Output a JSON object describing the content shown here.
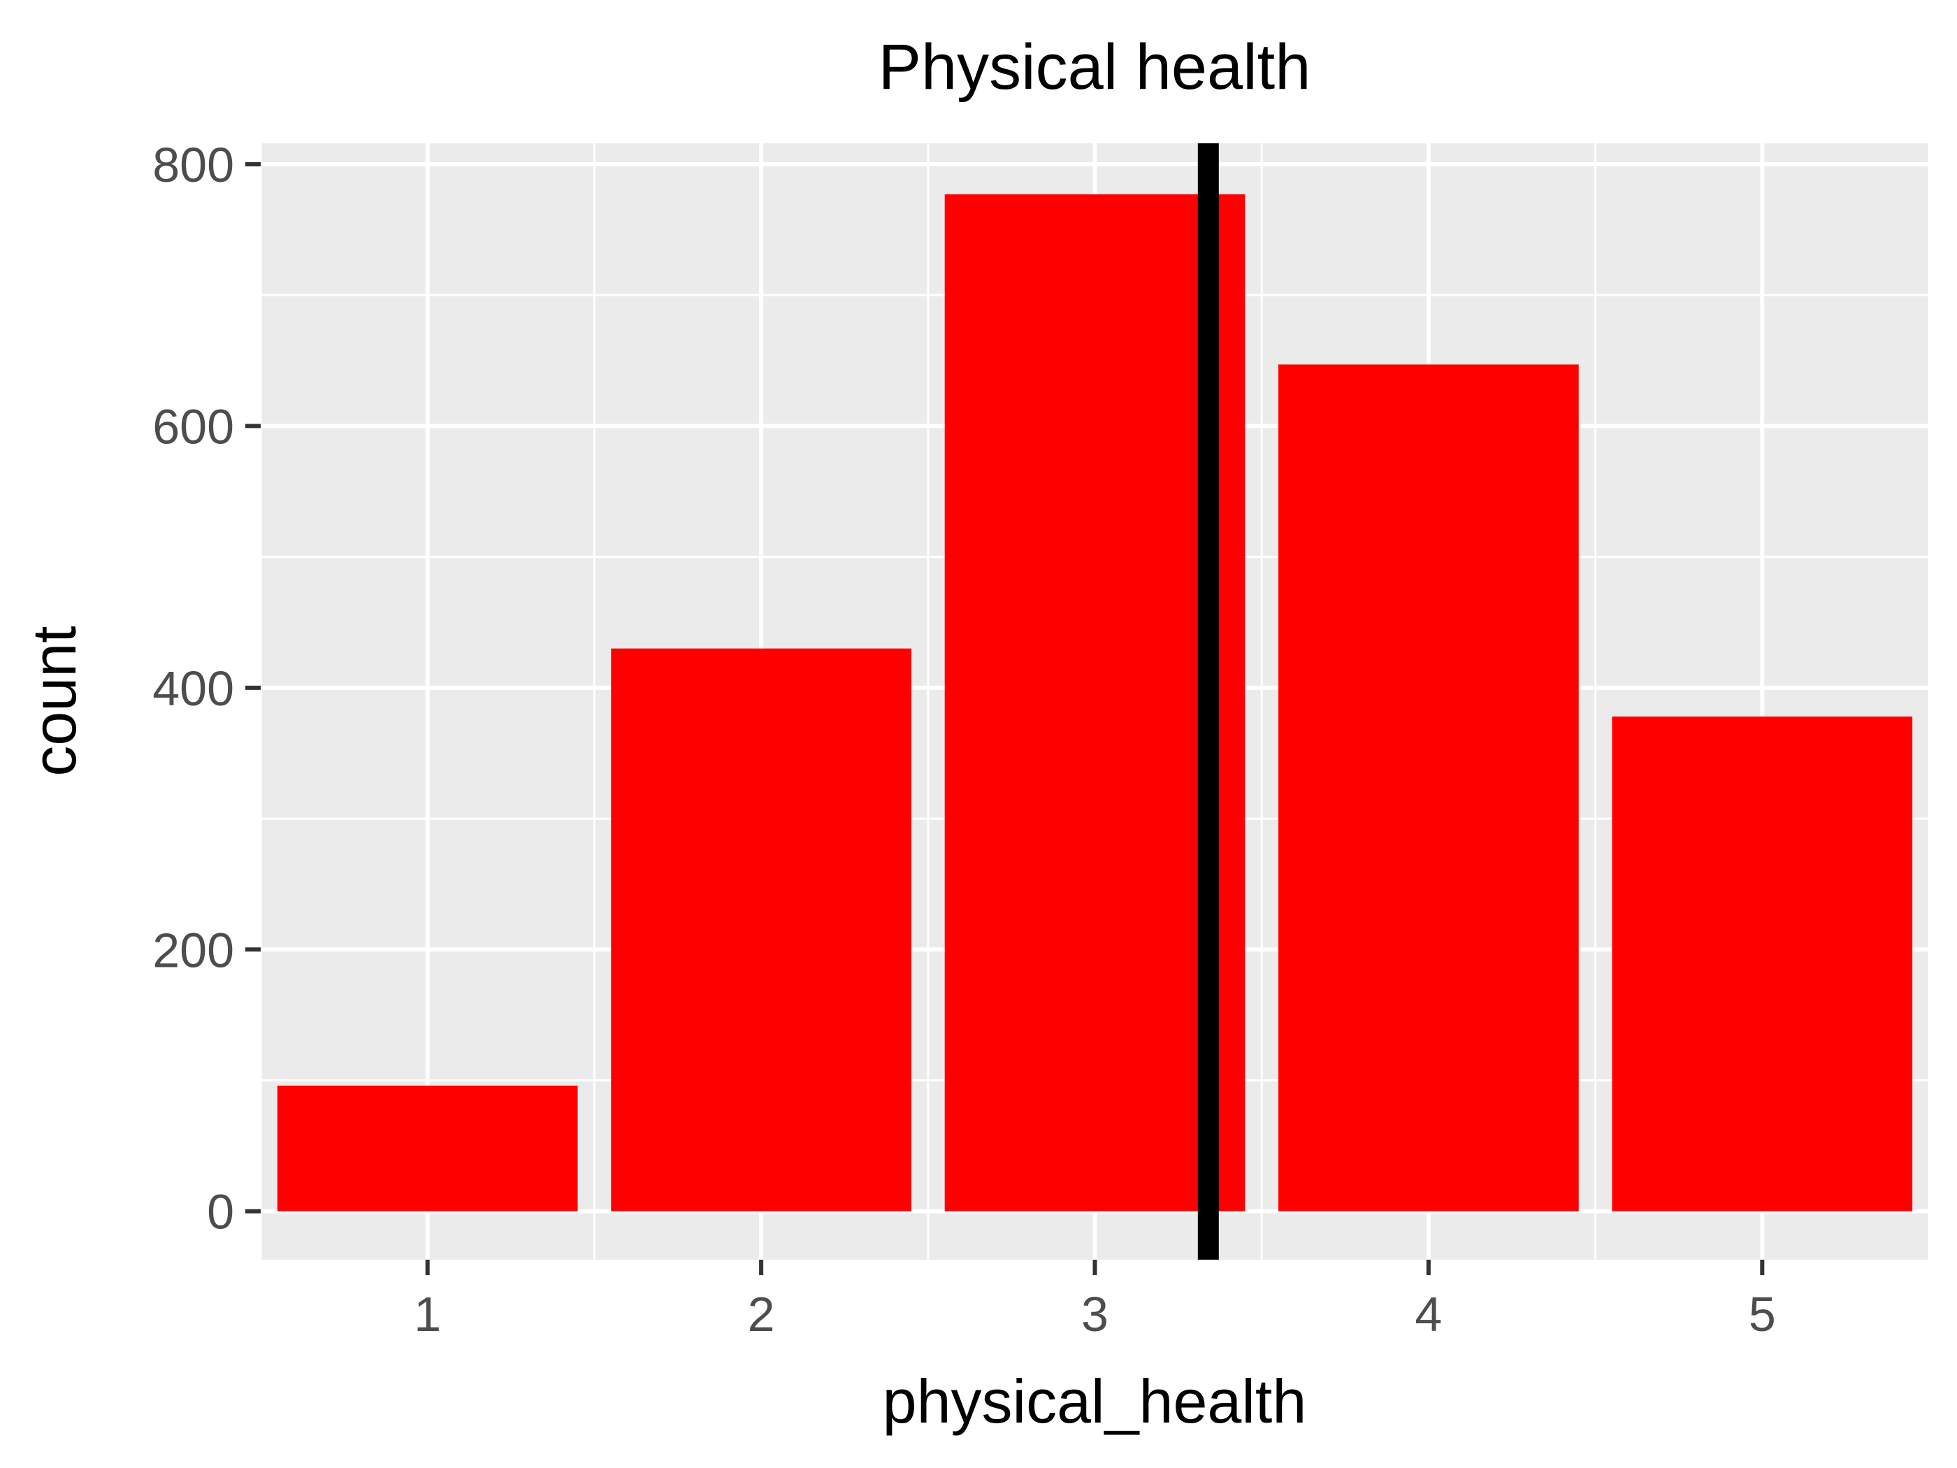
{
  "chart_data": {
    "type": "bar",
    "title": "Physical health",
    "xlabel": "physical_health",
    "ylabel": "count",
    "categories": [
      "1",
      "2",
      "3",
      "4",
      "5"
    ],
    "values": [
      96,
      430,
      777,
      647,
      378
    ],
    "ylim": [
      -37,
      816
    ],
    "xlim": [
      0.5,
      5.5
    ],
    "yticks": [
      0,
      200,
      400,
      600,
      800
    ],
    "grid": true,
    "legend": "none",
    "reference_line": {
      "orientation": "vertical",
      "x": 3.34,
      "color": "#000000"
    },
    "colors": {
      "bar": "#ff0000",
      "panel": "#ebebeb",
      "grid": "#ffffff",
      "tick_text": "#4d4d4d"
    }
  }
}
